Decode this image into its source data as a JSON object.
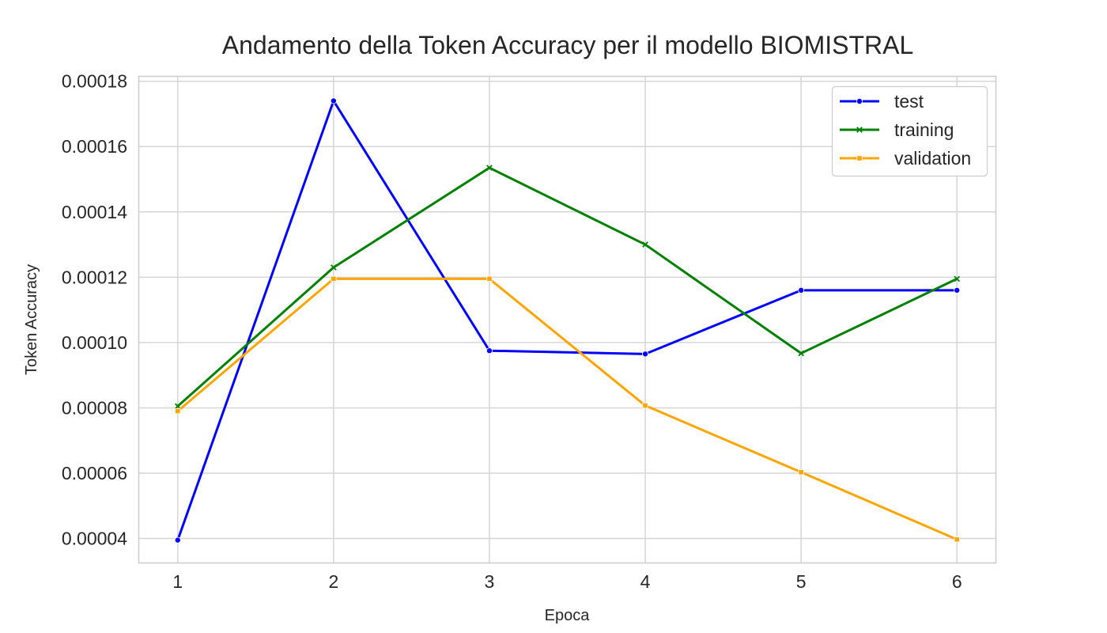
{
  "chart_data": {
    "type": "line",
    "title": "Andamento della Token Accuracy per il modello BIOMISTRAL",
    "xlabel": "Epoca",
    "ylabel": "Token Accuracy",
    "x": [
      1,
      2,
      3,
      4,
      5,
      6
    ],
    "x_tick_labels": [
      "1",
      "2",
      "3",
      "4",
      "5",
      "6"
    ],
    "xlim": [
      0.75,
      6.25
    ],
    "ylim": [
      3.25e-05,
      0.0001815
    ],
    "y_ticks": [
      4e-05,
      6e-05,
      8e-05,
      0.0001,
      0.00012,
      0.00014,
      0.00016,
      0.00018
    ],
    "y_tick_labels": [
      "0.00004",
      "0.00006",
      "0.00008",
      "0.00010",
      "0.00012",
      "0.00014",
      "0.00016",
      "0.00018"
    ],
    "grid": true,
    "legend_position": "top-right",
    "series": [
      {
        "name": "test",
        "color": "#0000ff",
        "marker": "circle",
        "values": [
          3.95e-05,
          0.000174,
          9.75e-05,
          9.65e-05,
          0.000116,
          0.000116
        ]
      },
      {
        "name": "training",
        "color": "#008000",
        "marker": "x",
        "values": [
          8.05e-05,
          0.000123,
          0.0001535,
          0.00013,
          9.67e-05,
          0.0001195
        ]
      },
      {
        "name": "validation",
        "color": "#ffa500",
        "marker": "square",
        "values": [
          7.9e-05,
          0.0001195,
          0.0001195,
          8.07e-05,
          6.03e-05,
          3.97e-05
        ]
      }
    ]
  }
}
